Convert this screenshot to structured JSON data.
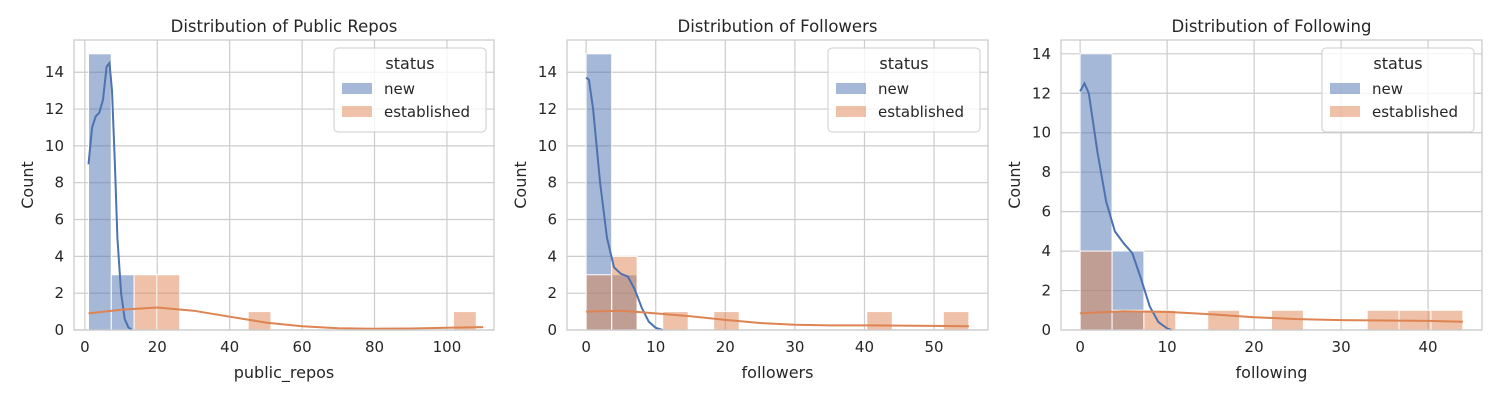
{
  "colors": {
    "new": "#4c72b0",
    "established": "#dd8452",
    "grid": "#cccccc",
    "spine": "#cccccc"
  },
  "chart_data": [
    {
      "type": "histogram",
      "title": "Distribution of Public Repos",
      "xlabel": "public_repos",
      "ylabel": "Count",
      "xlim": [
        -3,
        113
      ],
      "ylim": [
        0,
        15.75
      ],
      "xticks": [
        0,
        20,
        40,
        60,
        80,
        100
      ],
      "yticks": [
        0,
        2,
        4,
        6,
        8,
        10,
        12,
        14
      ],
      "grid": true,
      "legend": {
        "title": "status",
        "placement": "top-right",
        "entries": [
          "new",
          "established"
        ]
      },
      "bin_edges": [
        1,
        7.3,
        13.6,
        19.9,
        26.2,
        32.5,
        38.8,
        45.1,
        51.4,
        57.7,
        64,
        70.3,
        76.6,
        82.9,
        89.2,
        95.5,
        101.8,
        108.1
      ],
      "series": [
        {
          "name": "new",
          "counts": [
            15,
            3,
            0,
            0,
            0,
            0,
            0,
            0,
            0,
            0,
            0,
            0,
            0,
            0,
            0,
            0,
            0
          ]
        },
        {
          "name": "established",
          "counts": [
            0,
            0,
            3,
            3,
            0,
            0,
            0,
            1,
            0,
            0,
            0,
            0,
            0,
            0,
            0,
            0,
            1
          ]
        }
      ],
      "kde": [
        {
          "name": "new",
          "points": [
            [
              1,
              9.0
            ],
            [
              2,
              11.0
            ],
            [
              3,
              11.6
            ],
            [
              4,
              11.8
            ],
            [
              5,
              12.5
            ],
            [
              6,
              14.3
            ],
            [
              6.8,
              14.5
            ],
            [
              7.5,
              13.0
            ],
            [
              8.3,
              9.0
            ],
            [
              9,
              5.0
            ],
            [
              10,
              2.0
            ],
            [
              11,
              0.6
            ],
            [
              12,
              0.15
            ],
            [
              13,
              0.0
            ]
          ]
        },
        {
          "name": "established",
          "points": [
            [
              1,
              0.9
            ],
            [
              10,
              1.1
            ],
            [
              20,
              1.22
            ],
            [
              30,
              1.05
            ],
            [
              40,
              0.72
            ],
            [
              50,
              0.4
            ],
            [
              60,
              0.2
            ],
            [
              70,
              0.1
            ],
            [
              80,
              0.07
            ],
            [
              90,
              0.08
            ],
            [
              100,
              0.12
            ],
            [
              110,
              0.16
            ]
          ]
        }
      ]
    },
    {
      "type": "histogram",
      "title": "Distribution of Followers",
      "xlabel": "followers",
      "ylabel": "Count",
      "xlim": [
        -2.75,
        57.75
      ],
      "ylim": [
        0,
        15.75
      ],
      "xticks": [
        0,
        10,
        20,
        30,
        40,
        50
      ],
      "yticks": [
        0,
        2,
        4,
        6,
        8,
        10,
        12,
        14
      ],
      "grid": true,
      "legend": {
        "title": "status",
        "placement": "top-right",
        "entries": [
          "new",
          "established"
        ]
      },
      "bin_edges": [
        0,
        3.67,
        7.33,
        11,
        14.67,
        18.33,
        22,
        25.67,
        29.33,
        33,
        36.67,
        40.33,
        44,
        47.67,
        51.33,
        55
      ],
      "series": [
        {
          "name": "new",
          "counts": [
            15,
            3,
            0,
            0,
            0,
            0,
            0,
            0,
            0,
            0,
            0,
            0,
            0,
            0,
            0
          ]
        },
        {
          "name": "established",
          "counts": [
            3,
            4,
            0,
            1,
            0,
            1,
            0,
            0,
            0,
            0,
            0,
            1,
            0,
            0,
            1
          ]
        }
      ],
      "kde": [
        {
          "name": "new",
          "points": [
            [
              0,
              13.7
            ],
            [
              0.4,
              13.6
            ],
            [
              1,
              12.0
            ],
            [
              2,
              8.0
            ],
            [
              3,
              5.0
            ],
            [
              4,
              3.4
            ],
            [
              5,
              3.05
            ],
            [
              6,
              2.9
            ],
            [
              7,
              2.2
            ],
            [
              8,
              1.2
            ],
            [
              9,
              0.45
            ],
            [
              10,
              0.12
            ],
            [
              11,
              0.0
            ]
          ]
        },
        {
          "name": "established",
          "points": [
            [
              0,
              1.0
            ],
            [
              5,
              1.05
            ],
            [
              10,
              0.9
            ],
            [
              15,
              0.75
            ],
            [
              20,
              0.55
            ],
            [
              25,
              0.38
            ],
            [
              30,
              0.28
            ],
            [
              35,
              0.25
            ],
            [
              40,
              0.25
            ],
            [
              45,
              0.24
            ],
            [
              50,
              0.22
            ],
            [
              55,
              0.2
            ]
          ]
        }
      ]
    },
    {
      "type": "histogram",
      "title": "Distribution of Following",
      "xlabel": "following",
      "ylabel": "Count",
      "xlim": [
        -2.2,
        46.2
      ],
      "ylim": [
        0,
        14.7
      ],
      "xticks": [
        0,
        10,
        20,
        30,
        40
      ],
      "yticks": [
        0,
        2,
        4,
        6,
        8,
        10,
        12,
        14
      ],
      "grid": true,
      "legend": {
        "title": "status",
        "placement": "top-right",
        "entries": [
          "new",
          "established"
        ]
      },
      "bin_edges": [
        0,
        3.67,
        7.33,
        11,
        14.67,
        18.33,
        22,
        25.67,
        29.33,
        33,
        36.67,
        40.33,
        44
      ],
      "series": [
        {
          "name": "new",
          "counts": [
            14,
            4,
            0,
            0,
            0,
            0,
            0,
            0,
            0,
            0,
            0,
            0
          ]
        },
        {
          "name": "established",
          "counts": [
            4,
            1,
            1,
            0,
            1,
            0,
            1,
            0,
            0,
            1,
            1,
            1
          ]
        }
      ],
      "kde": [
        {
          "name": "new",
          "points": [
            [
              0,
              12.1
            ],
            [
              0.5,
              12.5
            ],
            [
              1,
              12.0
            ],
            [
              2,
              9.0
            ],
            [
              3,
              6.5
            ],
            [
              4,
              5.0
            ],
            [
              5,
              4.4
            ],
            [
              6,
              3.9
            ],
            [
              7,
              2.6
            ],
            [
              8,
              1.2
            ],
            [
              9,
              0.4
            ],
            [
              10,
              0.08
            ],
            [
              10.5,
              0.0
            ]
          ]
        },
        {
          "name": "established",
          "points": [
            [
              0,
              0.85
            ],
            [
              5,
              0.95
            ],
            [
              10,
              0.92
            ],
            [
              15,
              0.8
            ],
            [
              20,
              0.65
            ],
            [
              25,
              0.55
            ],
            [
              30,
              0.5
            ],
            [
              35,
              0.48
            ],
            [
              40,
              0.46
            ],
            [
              44,
              0.42
            ]
          ]
        }
      ]
    }
  ]
}
